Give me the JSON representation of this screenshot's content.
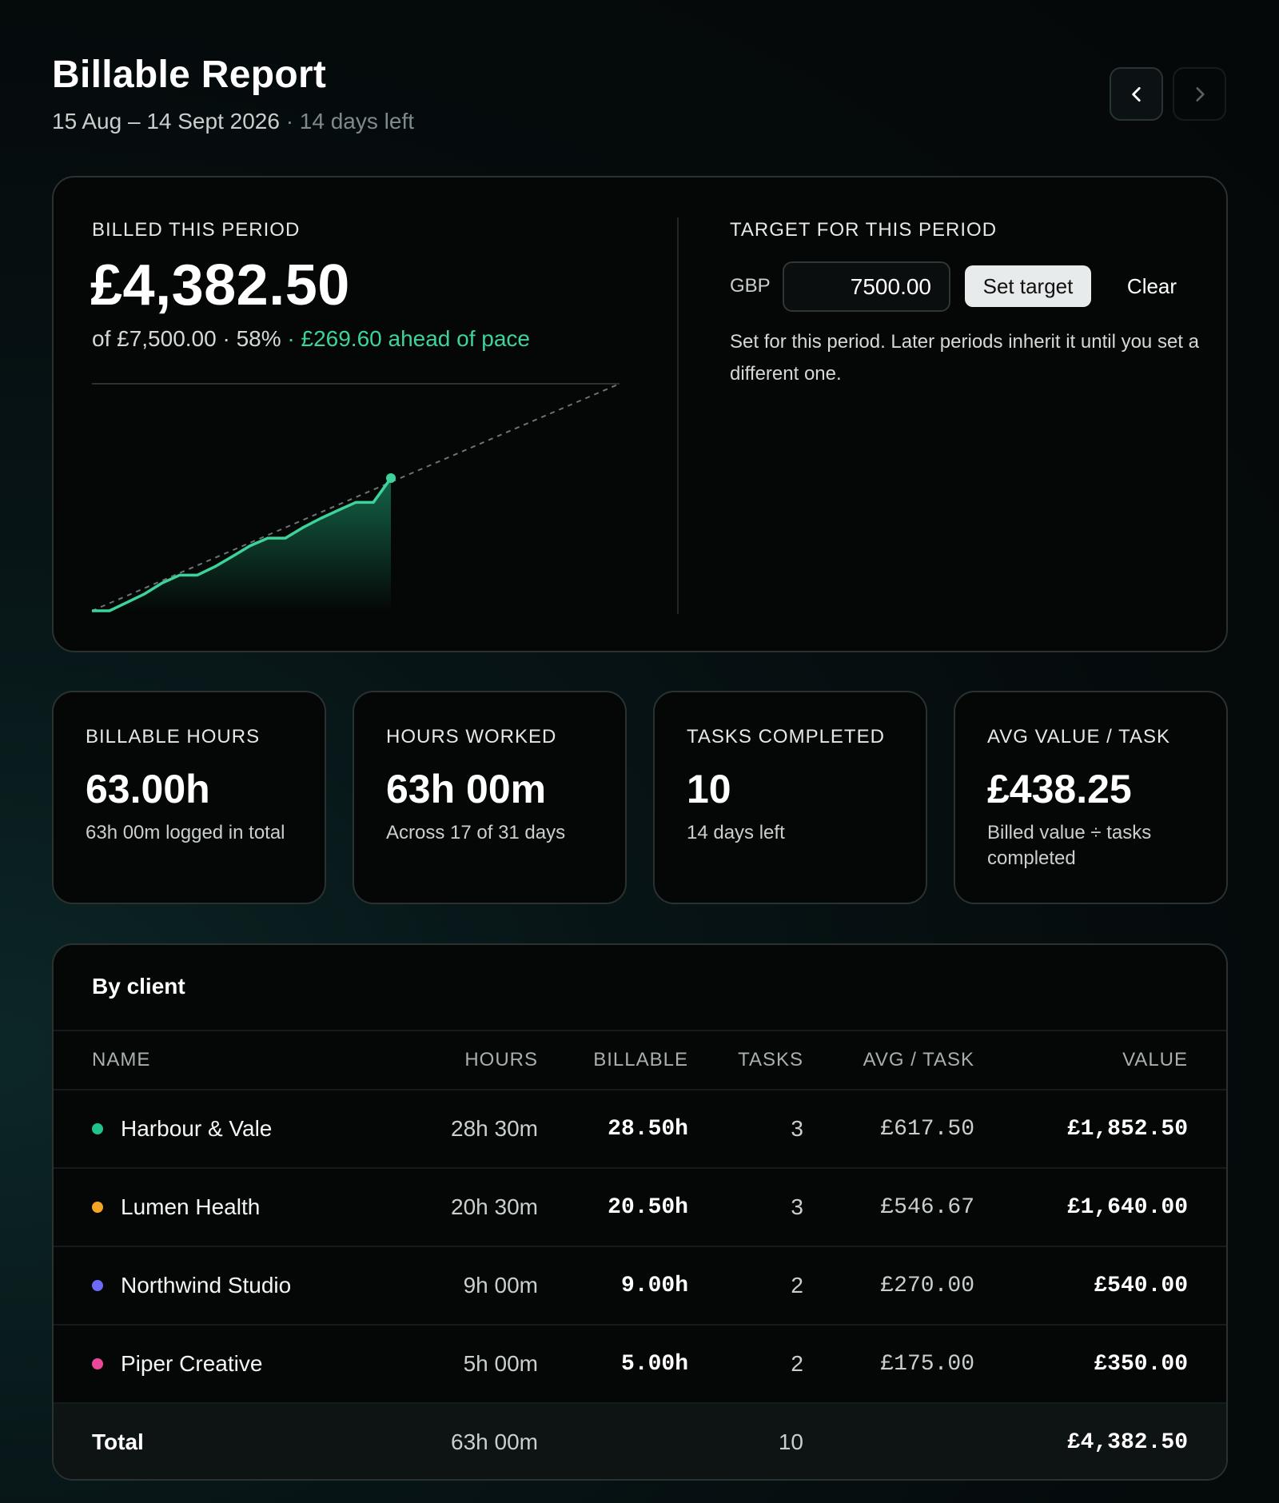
{
  "header": {
    "title": "Billable Report",
    "date_range": "15 Aug – 14 Sept 2026",
    "days_left": " · 14 days left",
    "prev_icon": "chevron-left-icon",
    "next_icon": "chevron-right-icon"
  },
  "billed": {
    "label": "BILLED THIS PERIOD",
    "amount": "£4,382.50",
    "of_text": "of £7,500.00 · 58%",
    "pace_text": " · £269.60 ahead of pace"
  },
  "target": {
    "label": "TARGET FOR THIS PERIOD",
    "currency": "GBP",
    "value": "7500.00",
    "set_label": "Set target",
    "clear_label": "Clear",
    "note": "Set for this period. Later periods inherit it until you set a different one."
  },
  "stats": [
    {
      "label": "BILLABLE HOURS",
      "value": "63.00h",
      "sub": "63h 00m logged in total"
    },
    {
      "label": "HOURS WORKED",
      "value": "63h 00m",
      "sub": "Across 17 of 31 days"
    },
    {
      "label": "TASKS COMPLETED",
      "value": "10",
      "sub": "14 days left"
    },
    {
      "label": "AVG VALUE / TASK",
      "value": "£438.25",
      "sub": "Billed value ÷ tasks completed"
    }
  ],
  "clients": {
    "title": "By client",
    "columns": {
      "name": "NAME",
      "hours": "HOURS",
      "billable": "BILLABLE",
      "tasks": "TASKS",
      "avg": "AVG / TASK",
      "value": "VALUE"
    },
    "rows": [
      {
        "name": "Harbour & Vale",
        "color": "#1fc48a",
        "hours": "28h 30m",
        "billable": "28.50h",
        "tasks": "3",
        "avg": "£617.50",
        "value": "£1,852.50"
      },
      {
        "name": "Lumen Health",
        "color": "#f5a524",
        "hours": "20h 30m",
        "billable": "20.50h",
        "tasks": "3",
        "avg": "£546.67",
        "value": "£1,640.00"
      },
      {
        "name": "Northwind Studio",
        "color": "#6d6af5",
        "hours": "9h 00m",
        "billable": "9.00h",
        "tasks": "2",
        "avg": "£270.00",
        "value": "£540.00"
      },
      {
        "name": "Piper Creative",
        "color": "#ec4899",
        "hours": "5h 00m",
        "billable": "5.00h",
        "tasks": "2",
        "avg": "£175.00",
        "value": "£350.00"
      }
    ],
    "total": {
      "name": "Total",
      "hours": "63h 00m",
      "tasks": "10",
      "value": "£4,382.50"
    }
  },
  "chart_data": {
    "type": "line",
    "x": [
      1,
      2,
      3,
      4,
      5,
      6,
      7,
      8,
      9,
      10,
      11,
      12,
      13,
      14,
      15,
      16,
      17,
      18
    ],
    "series": [
      {
        "values": [
          0,
          0,
          280,
          560,
          920,
          1180,
          1180,
          1460,
          1800,
          2150,
          2400,
          2400,
          2750,
          3050,
          3320,
          3580,
          3580,
          4382.5
        ]
      }
    ],
    "pace_line": {
      "x": [
        1,
        31
      ],
      "values": [
        0,
        7500
      ]
    },
    "target": 7500,
    "xlim": [
      1,
      31
    ],
    "ylim": [
      0,
      7500
    ],
    "colors": {
      "line": "#3dd49b",
      "pace": "#6b7474",
      "target_line": "#2a3131"
    }
  }
}
